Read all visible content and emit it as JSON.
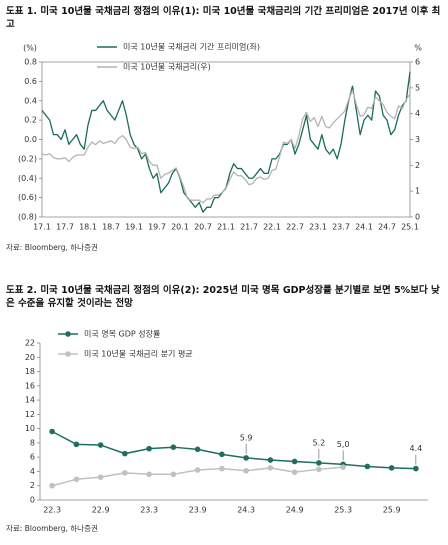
{
  "chart_data": [
    {
      "type": "line",
      "title": "도표 1. 미국 10년물 국채금리 정점의 이유(1): 미국 10년물 국채금리의 기간 프리미엄은 2017년 이후 최고",
      "y_unit": "(%)",
      "y2_unit": "%",
      "source": "자료: Bloomberg, 하나증권",
      "x": [
        "17.1",
        "17.2",
        "17.3",
        "17.4",
        "17.5",
        "17.6",
        "17.7",
        "17.8",
        "17.9",
        "17.10",
        "17.11",
        "17.12",
        "18.1",
        "18.2",
        "18.3",
        "18.4",
        "18.5",
        "18.6",
        "18.7",
        "18.8",
        "18.9",
        "18.10",
        "18.11",
        "18.12",
        "19.1",
        "19.2",
        "19.3",
        "19.4",
        "19.5",
        "19.6",
        "19.7",
        "19.8",
        "19.9",
        "19.10",
        "19.11",
        "19.12",
        "20.1",
        "20.2",
        "20.3",
        "20.4",
        "20.5",
        "20.6",
        "20.7",
        "20.8",
        "20.9",
        "20.10",
        "20.11",
        "20.12",
        "21.1",
        "21.2",
        "21.3",
        "21.4",
        "21.5",
        "21.6",
        "21.7",
        "21.8",
        "21.9",
        "21.10",
        "21.11",
        "21.12",
        "22.1",
        "22.2",
        "22.3",
        "22.4",
        "22.5",
        "22.6",
        "22.7",
        "22.8",
        "22.9",
        "22.10",
        "22.11",
        "22.12",
        "23.1",
        "23.2",
        "23.3",
        "23.4",
        "23.5",
        "23.6",
        "23.7",
        "23.8",
        "23.9",
        "23.10",
        "23.11",
        "23.12",
        "24.1",
        "24.2",
        "24.3",
        "24.4",
        "24.5",
        "24.6",
        "24.7",
        "24.8",
        "24.9",
        "24.10",
        "24.11",
        "24.12",
        "25.1"
      ],
      "xticks": [
        "17.1",
        "17.7",
        "18.1",
        "18.7",
        "19.1",
        "19.7",
        "20.1",
        "20.7",
        "21.1",
        "21.7",
        "22.1",
        "22.7",
        "23.1",
        "23.7",
        "24.1",
        "24.7",
        "25.1"
      ],
      "ylim": [
        -0.8,
        0.8
      ],
      "yticks": [
        {
          "value": -0.8,
          "label": "(0.8)"
        },
        {
          "value": -0.6,
          "label": "(0.6)"
        },
        {
          "value": -0.4,
          "label": "(0.4)"
        },
        {
          "value": -0.2,
          "label": "(0.2)"
        },
        {
          "value": 0,
          "label": "0.0"
        },
        0.2,
        0.4,
        0.6,
        0.8
      ],
      "y2lim": [
        0,
        6
      ],
      "y2ticks": [
        0,
        1,
        2,
        3,
        4,
        5,
        6
      ],
      "series": [
        {
          "name": "미국 10년물 국채금리 기간 프리미엄(좌)",
          "color": "#1b6b5c",
          "values": [
            0.3,
            0.25,
            0.2,
            0.05,
            0.05,
            0.0,
            0.1,
            -0.05,
            0.0,
            0.05,
            -0.05,
            -0.1,
            0.15,
            0.3,
            0.3,
            0.35,
            0.4,
            0.3,
            0.25,
            0.2,
            0.3,
            0.4,
            0.25,
            0.05,
            -0.05,
            -0.1,
            -0.2,
            -0.15,
            -0.3,
            -0.4,
            -0.35,
            -0.55,
            -0.5,
            -0.45,
            -0.35,
            -0.3,
            -0.4,
            -0.55,
            -0.6,
            -0.65,
            -0.7,
            -0.65,
            -0.75,
            -0.7,
            -0.7,
            -0.6,
            -0.6,
            -0.55,
            -0.5,
            -0.35,
            -0.25,
            -0.3,
            -0.3,
            -0.35,
            -0.4,
            -0.4,
            -0.35,
            -0.3,
            -0.35,
            -0.35,
            -0.2,
            -0.2,
            -0.15,
            -0.05,
            -0.05,
            0.0,
            -0.15,
            -0.05,
            0.1,
            0.25,
            0.0,
            -0.05,
            -0.1,
            0.05,
            -0.1,
            -0.15,
            -0.1,
            -0.2,
            -0.05,
            0.2,
            0.4,
            0.55,
            0.3,
            0.05,
            0.2,
            0.25,
            0.2,
            0.5,
            0.45,
            0.25,
            0.2,
            0.05,
            0.1,
            0.25,
            0.35,
            0.4,
            0.7
          ]
        },
        {
          "name": "미국 10년물 국채금리(우)",
          "color": "#b4b4b4",
          "axis": "y2",
          "values": [
            2.45,
            2.4,
            2.45,
            2.3,
            2.25,
            2.25,
            2.3,
            2.15,
            2.3,
            2.4,
            2.4,
            2.4,
            2.7,
            2.9,
            2.8,
            2.95,
            2.85,
            2.9,
            2.95,
            2.85,
            3.05,
            3.15,
            3.0,
            2.7,
            2.65,
            2.7,
            2.45,
            2.5,
            2.15,
            2.0,
            2.0,
            1.5,
            1.65,
            1.7,
            1.8,
            1.9,
            1.55,
            1.15,
            0.7,
            0.65,
            0.65,
            0.65,
            0.55,
            0.7,
            0.7,
            0.85,
            0.85,
            0.95,
            1.1,
            1.45,
            1.75,
            1.6,
            1.6,
            1.45,
            1.25,
            1.3,
            1.5,
            1.55,
            1.45,
            1.5,
            1.8,
            1.85,
            2.35,
            2.9,
            2.85,
            3.0,
            2.65,
            3.15,
            3.8,
            4.05,
            3.7,
            3.85,
            3.5,
            3.9,
            3.5,
            3.45,
            3.65,
            3.8,
            3.95,
            4.1,
            4.55,
            4.9,
            4.35,
            3.9,
            3.95,
            4.25,
            4.2,
            4.65,
            4.5,
            4.35,
            4.05,
            3.9,
            3.8,
            4.3,
            4.2,
            4.55,
            4.75
          ]
        }
      ]
    },
    {
      "type": "line",
      "markers": true,
      "title": "도표 2. 미국 10년물 국채금리 정점의 이유(2): 2025년 미국 명목 GDP성장률 분기별로 보면 5%보다 낮은 수준을 유지할 것이라는 전망",
      "source": "자료: Bloomberg, 하나증권",
      "x": [
        "22.3",
        "22.6",
        "22.9",
        "22.12",
        "23.3",
        "23.6",
        "23.9",
        "23.12",
        "24.3",
        "24.6",
        "24.9",
        "24.12",
        "25.3",
        "25.6",
        "25.9",
        "25.12"
      ],
      "xticks": [
        "22.3",
        "22.9",
        "23.3",
        "23.9",
        "24.3",
        "24.9",
        "25.3",
        "25.9"
      ],
      "ylim": [
        0,
        22
      ],
      "yticks": [
        0,
        2,
        4,
        6,
        8,
        10,
        12,
        14,
        16,
        18,
        20,
        22
      ],
      "series": [
        {
          "name": "미국 명목 GDP 성장률",
          "color": "#1f6e60",
          "values": [
            9.6,
            7.8,
            7.7,
            6.5,
            7.2,
            7.4,
            7.1,
            6.4,
            5.9,
            5.6,
            5.4,
            5.2,
            5.0,
            4.7,
            4.5,
            4.4
          ],
          "value_labels": [
            null,
            null,
            null,
            null,
            null,
            null,
            null,
            null,
            "5.9",
            null,
            null,
            "5.2",
            "5,0",
            null,
            null,
            "4.4"
          ]
        },
        {
          "name": "미국 10년물 국채금리 분기 평균",
          "color": "#c0c0c0",
          "values": [
            2.0,
            2.9,
            3.2,
            3.8,
            3.6,
            3.6,
            4.2,
            4.4,
            4.1,
            4.5,
            3.9,
            4.3,
            4.6,
            null,
            null,
            null
          ]
        }
      ]
    }
  ]
}
